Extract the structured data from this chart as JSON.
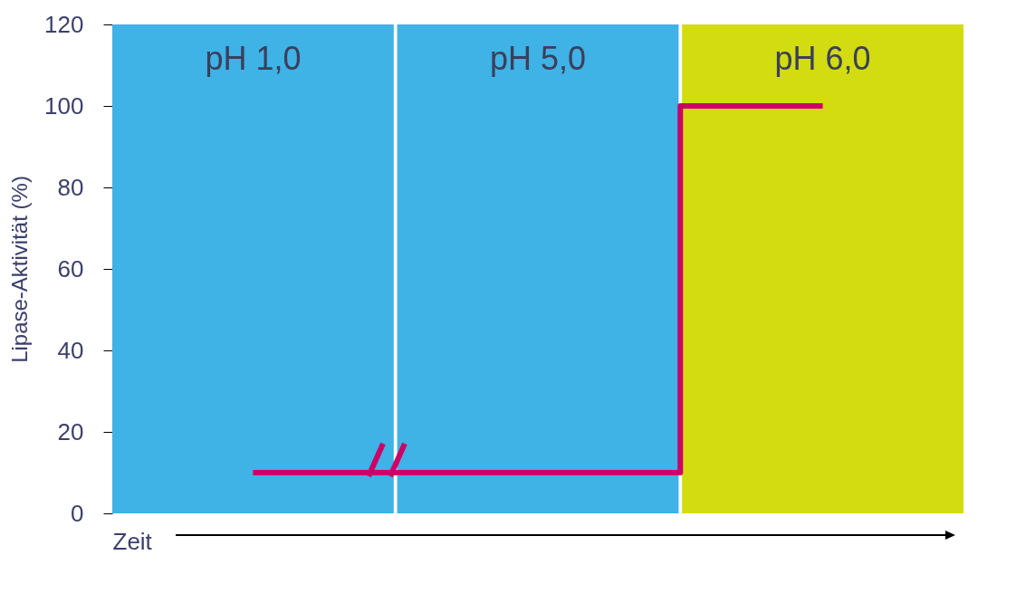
{
  "chart_data": {
    "type": "step",
    "categories": [
      "pH 1,0",
      "pH 5,0",
      "pH 6,0"
    ],
    "values": [
      10,
      10,
      100
    ],
    "color": "#cc0066",
    "ylabel": "Lipase-Aktivität (%)",
    "xlabel": "Zeit",
    "ylim": [
      0,
      120
    ],
    "yticks": [
      0,
      20,
      40,
      60,
      80,
      100,
      120
    ],
    "grid": false,
    "bands": [
      {
        "axis": "x",
        "from": "pH 1,0",
        "to": "pH 1,0",
        "color": "#3fb2e6"
      },
      {
        "axis": "x",
        "from": "pH 5,0",
        "to": "pH 5,0",
        "color": "#3fb2e6"
      },
      {
        "axis": "x",
        "from": "pH 6,0",
        "to": "pH 6,0",
        "color": "#d2dc10"
      }
    ]
  }
}
